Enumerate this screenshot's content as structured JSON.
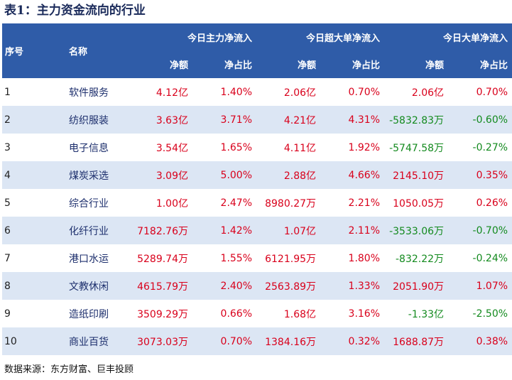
{
  "title": "表1：主力资金流向的行业",
  "headers": {
    "seq": "序号",
    "name": "名称",
    "group_main": "今日主力净流入",
    "group_super": "今日超大单净流入",
    "group_large": "今日大单净流入",
    "net_amount": "净额",
    "net_ratio": "净占比"
  },
  "rows": [
    {
      "idx": "1",
      "name": "软件服务",
      "main_amt": "4.12亿",
      "main_pct": "1.40%",
      "super_amt": "2.06亿",
      "super_pct": "0.70%",
      "large_amt": "2.06亿",
      "large_pct": "0.70%"
    },
    {
      "idx": "2",
      "name": "纺织服装",
      "main_amt": "3.63亿",
      "main_pct": "3.71%",
      "super_amt": "4.21亿",
      "super_pct": "4.31%",
      "large_amt": "-5832.83万",
      "large_pct": "-0.60%"
    },
    {
      "idx": "3",
      "name": "电子信息",
      "main_amt": "3.54亿",
      "main_pct": "1.65%",
      "super_amt": "4.11亿",
      "super_pct": "1.92%",
      "large_amt": "-5747.58万",
      "large_pct": "-0.27%"
    },
    {
      "idx": "4",
      "name": "煤炭采选",
      "main_amt": "3.09亿",
      "main_pct": "5.00%",
      "super_amt": "2.88亿",
      "super_pct": "4.66%",
      "large_amt": "2145.10万",
      "large_pct": "0.35%"
    },
    {
      "idx": "5",
      "name": "综合行业",
      "main_amt": "1.00亿",
      "main_pct": "2.47%",
      "super_amt": "8980.27万",
      "super_pct": "2.21%",
      "large_amt": "1050.05万",
      "large_pct": "0.26%"
    },
    {
      "idx": "6",
      "name": "化纤行业",
      "main_amt": "7182.76万",
      "main_pct": "1.42%",
      "super_amt": "1.07亿",
      "super_pct": "2.11%",
      "large_amt": "-3533.06万",
      "large_pct": "-0.70%"
    },
    {
      "idx": "7",
      "name": "港口水运",
      "main_amt": "5289.74万",
      "main_pct": "1.55%",
      "super_amt": "6121.95万",
      "super_pct": "1.80%",
      "large_amt": "-832.22万",
      "large_pct": "-0.24%"
    },
    {
      "idx": "8",
      "name": "文教休闲",
      "main_amt": "4615.79万",
      "main_pct": "2.40%",
      "super_amt": "2563.89万",
      "super_pct": "1.33%",
      "large_amt": "2051.90万",
      "large_pct": "1.07%"
    },
    {
      "idx": "9",
      "name": "造纸印刷",
      "main_amt": "3509.29万",
      "main_pct": "0.66%",
      "super_amt": "1.68亿",
      "super_pct": "3.16%",
      "large_amt": "-1.33亿",
      "large_pct": "-2.50%"
    },
    {
      "idx": "10",
      "name": "商业百货",
      "main_amt": "3073.03万",
      "main_pct": "0.70%",
      "super_amt": "1384.16万",
      "super_pct": "0.32%",
      "large_amt": "1688.87万",
      "large_pct": "0.38%"
    }
  ],
  "source": "数据来源：东方财富、巨丰投顾",
  "colors": {
    "header_bg": "#2f5ca8",
    "stripe_bg": "#dce6f4",
    "positive": "#d9001b",
    "negative": "#138a1e",
    "name_text": "#1c2e6c"
  }
}
